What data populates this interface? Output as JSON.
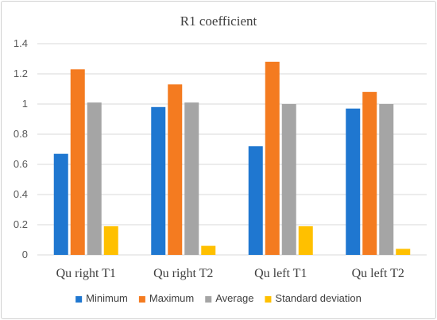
{
  "chart_data": {
    "type": "bar",
    "title": "R1 coefficient",
    "categories": [
      "Qu right T1",
      "Qu right T2",
      "Qu left T1",
      "Qu left T2"
    ],
    "series": [
      {
        "name": "Minimum",
        "color": "#1f77d0",
        "values": [
          0.67,
          0.98,
          0.72,
          0.97
        ]
      },
      {
        "name": "Maximum",
        "color": "#f47b20",
        "values": [
          1.23,
          1.13,
          1.28,
          1.08
        ]
      },
      {
        "name": "Average",
        "color": "#a5a5a5",
        "values": [
          1.01,
          1.01,
          1.0,
          1.0
        ]
      },
      {
        "name": "Standard deviation",
        "color": "#ffc000",
        "values": [
          0.19,
          0.06,
          0.19,
          0.04
        ]
      }
    ],
    "yticks": [
      "0",
      "0.2",
      "0.4",
      "0.6",
      "0.8",
      "1",
      "1.2",
      "1.4"
    ],
    "ylim": [
      0,
      1.4
    ],
    "grid": true,
    "legend_position": "bottom"
  }
}
